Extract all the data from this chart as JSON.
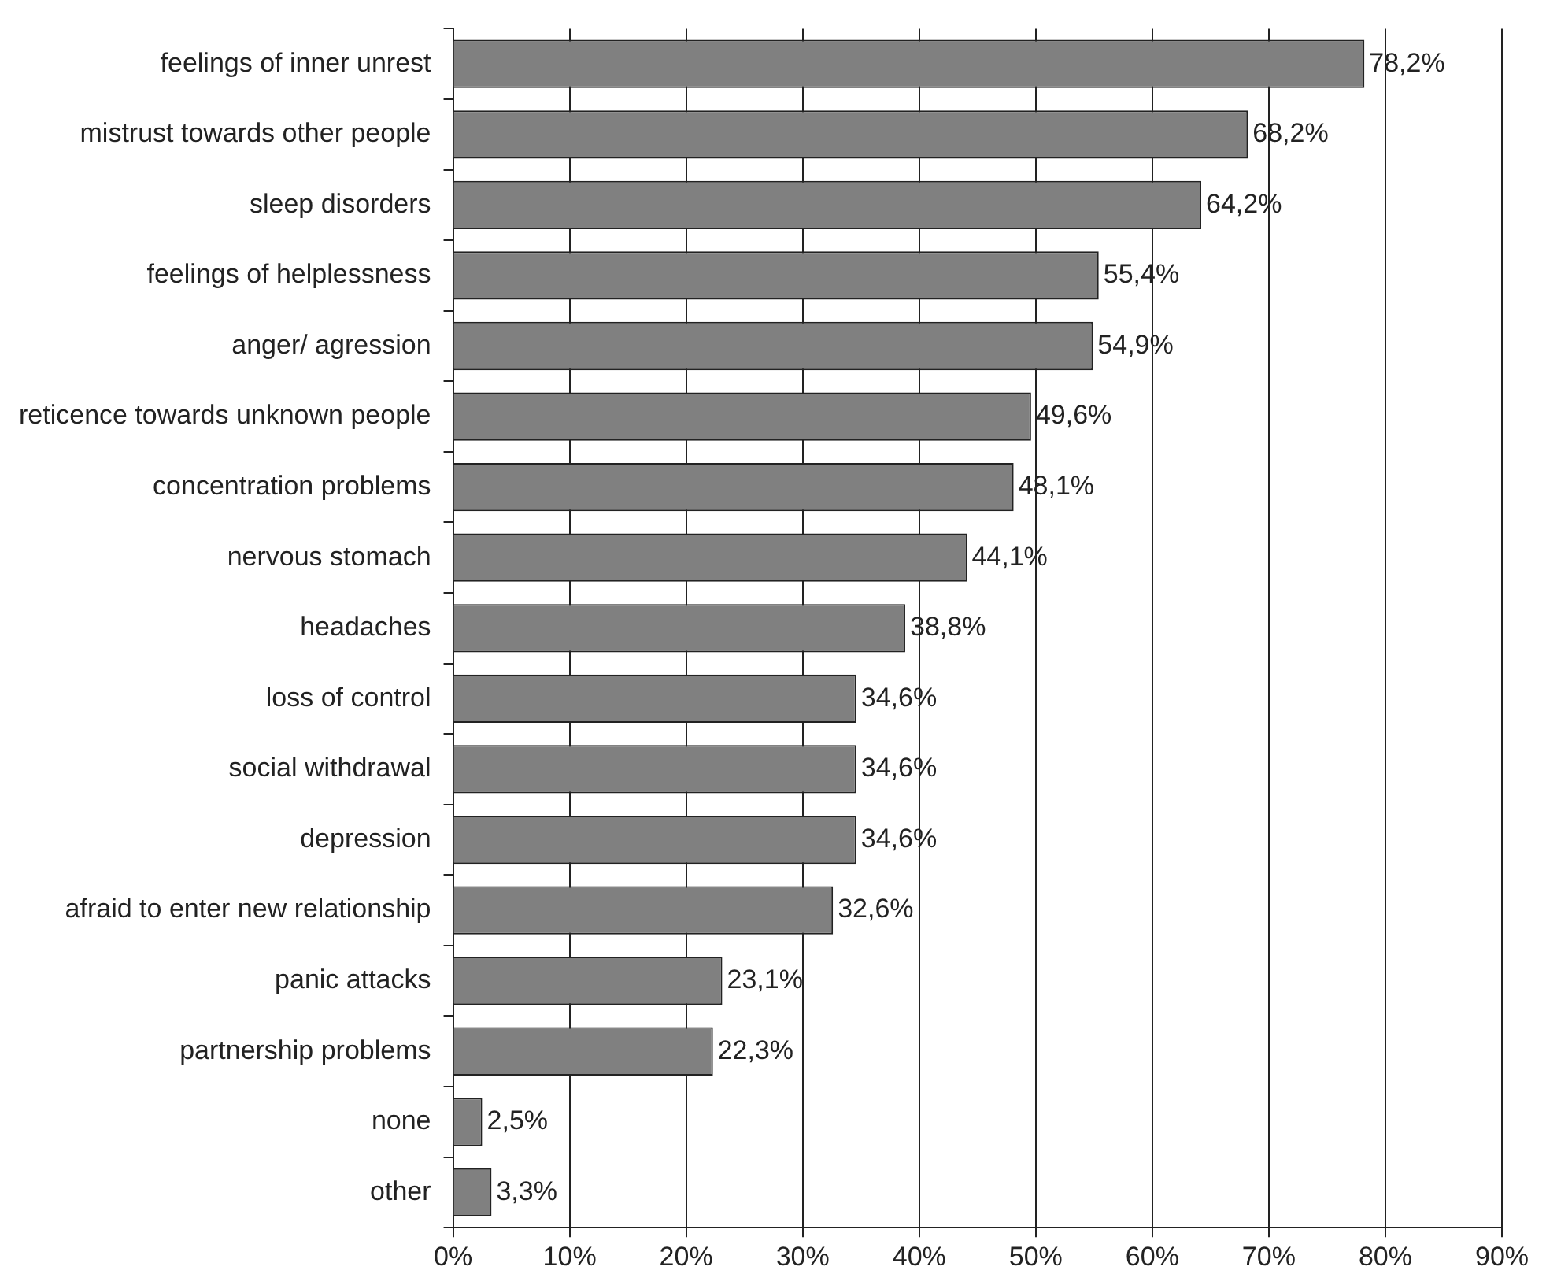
{
  "chart_data": {
    "type": "bar",
    "orientation": "horizontal",
    "categories": [
      "feelings of inner unrest",
      "mistrust towards other people",
      "sleep disorders",
      "feelings of helplessness",
      "anger/ agression",
      "reticence towards unknown people",
      "concentration problems",
      "nervous stomach",
      "headaches",
      "loss of control",
      "social withdrawal",
      "depression",
      "afraid to enter new relationship",
      "panic attacks",
      "partnership problems",
      "none",
      "other"
    ],
    "values": [
      78.2,
      68.2,
      64.2,
      55.4,
      54.9,
      49.6,
      48.1,
      44.1,
      38.8,
      34.6,
      34.6,
      34.6,
      32.6,
      23.1,
      22.3,
      2.5,
      3.3
    ],
    "value_labels": [
      "78,2%",
      "68,2%",
      "64,2%",
      "55,4%",
      "54,9%",
      "49,6%",
      "48,1%",
      "44,1%",
      "38,8%",
      "34,6%",
      "34,6%",
      "34,6%",
      "32,6%",
      "23,1%",
      "22,3%",
      "2,5%",
      "3,3%"
    ],
    "color": "#808080",
    "xlim": [
      0,
      90
    ],
    "xticks": [
      {
        "value": 0,
        "label": "0%"
      },
      {
        "value": 10,
        "label": "10%"
      },
      {
        "value": 20,
        "label": "20%"
      },
      {
        "value": 30,
        "label": "30%"
      },
      {
        "value": 40,
        "label": "40%"
      },
      {
        "value": 50,
        "label": "50%"
      },
      {
        "value": 60,
        "label": "60%"
      },
      {
        "value": 70,
        "label": "70%"
      },
      {
        "value": 80,
        "label": "80%"
      },
      {
        "value": 90,
        "label": "90%"
      }
    ],
    "grid": "x",
    "legend": false
  }
}
